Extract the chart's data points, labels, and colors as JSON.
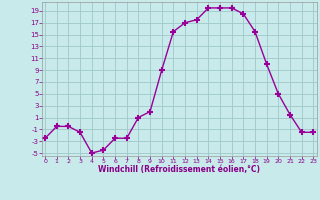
{
  "x": [
    0,
    1,
    2,
    3,
    4,
    5,
    6,
    7,
    8,
    9,
    10,
    11,
    12,
    13,
    14,
    15,
    16,
    17,
    18,
    19,
    20,
    21,
    22,
    23
  ],
  "y": [
    -2.5,
    -0.5,
    -0.5,
    -1.5,
    -5,
    -4.5,
    -2.5,
    -2.5,
    1,
    2,
    9,
    15.5,
    17,
    17.5,
    19.5,
    19.5,
    19.5,
    18.5,
    15.5,
    10,
    5,
    1.5,
    -1.5,
    -1.5
  ],
  "line_color": "#990099",
  "marker": "+",
  "marker_size": 4,
  "xlim": [
    -0.3,
    23.3
  ],
  "ylim": [
    -5.5,
    20.5
  ],
  "yticks": [
    -5,
    -3,
    -1,
    1,
    3,
    5,
    7,
    9,
    11,
    13,
    15,
    17,
    19
  ],
  "xticks": [
    0,
    1,
    2,
    3,
    4,
    5,
    6,
    7,
    8,
    9,
    10,
    11,
    12,
    13,
    14,
    15,
    16,
    17,
    18,
    19,
    20,
    21,
    22,
    23
  ],
  "xlabel": "Windchill (Refroidissement éolien,°C)",
  "bg_color": "#c8eaea",
  "grid_color": "#a0c8c8",
  "tick_label_color": "#880088",
  "axis_label_color": "#880088"
}
